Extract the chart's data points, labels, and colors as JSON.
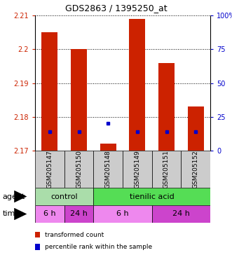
{
  "title": "GDS2863 / 1395250_at",
  "samples": [
    "GSM205147",
    "GSM205150",
    "GSM205148",
    "GSM205149",
    "GSM205151",
    "GSM205152"
  ],
  "bar_bottom": 2.17,
  "bar_tops": [
    2.205,
    2.2,
    2.172,
    2.209,
    2.196,
    2.183
  ],
  "percentile_values": [
    2.1755,
    2.1755,
    2.178,
    2.1755,
    2.1755,
    2.1755
  ],
  "ylim": [
    2.17,
    2.21
  ],
  "yticks": [
    2.17,
    2.18,
    2.19,
    2.2,
    2.21
  ],
  "ytick_labels": [
    "2.17",
    "2.18",
    "2.19",
    "2.2",
    "2.21"
  ],
  "right_yticks": [
    0,
    25,
    50,
    75,
    100
  ],
  "right_ytick_labels": [
    "0",
    "25",
    "50",
    "75",
    "100%"
  ],
  "bar_color": "#cc2200",
  "percentile_color": "#0000cc",
  "agent_groups": [
    {
      "label": "control",
      "start": 0,
      "end": 2,
      "color": "#aaddaa"
    },
    {
      "label": "tienilic acid",
      "start": 2,
      "end": 6,
      "color": "#55dd55"
    }
  ],
  "time_groups": [
    {
      "label": "6 h",
      "start": 0,
      "end": 1,
      "color": "#ee88ee"
    },
    {
      "label": "24 h",
      "start": 1,
      "end": 2,
      "color": "#cc44cc"
    },
    {
      "label": "6 h",
      "start": 2,
      "end": 4,
      "color": "#ee88ee"
    },
    {
      "label": "24 h",
      "start": 4,
      "end": 6,
      "color": "#cc44cc"
    }
  ],
  "legend_items": [
    {
      "label": "transformed count",
      "color": "#cc2200"
    },
    {
      "label": "percentile rank within the sample",
      "color": "#0000cc"
    }
  ],
  "left_label_color": "#cc2200",
  "right_label_color": "#0000cc",
  "bar_width": 0.55,
  "sample_box_color": "#cccccc",
  "agent_arrow_label": "agent",
  "time_arrow_label": "time"
}
